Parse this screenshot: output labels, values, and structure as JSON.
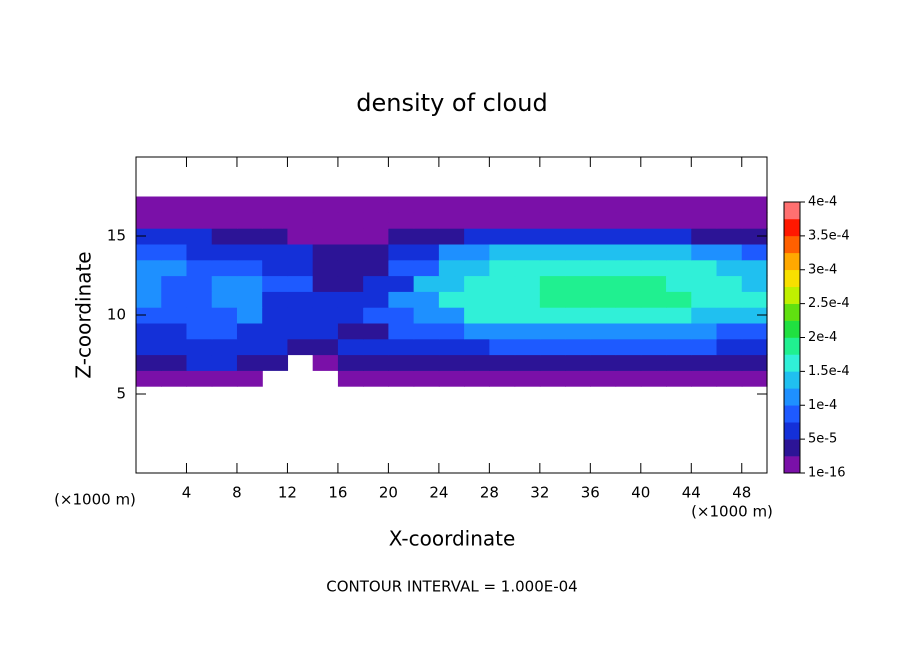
{
  "chart_data": {
    "type": "contour",
    "title": "density of cloud",
    "xlabel": "X-coordinate",
    "ylabel": "Z-coordinate",
    "x_units": "(×1000 m)",
    "y_units": "(×1000 m)",
    "annotation": "CONTOUR INTERVAL = 1.000E-04",
    "xlim": [
      0,
      50
    ],
    "ylim": [
      0,
      20
    ],
    "xticks": [
      4,
      8,
      12,
      16,
      20,
      24,
      28,
      32,
      36,
      40,
      44,
      48
    ],
    "yticks": [
      5,
      10,
      15
    ],
    "x": [
      1,
      3,
      5,
      7,
      9,
      11,
      13,
      15,
      17,
      19,
      21,
      23,
      25,
      27,
      29,
      31,
      33,
      35,
      37,
      39,
      41,
      43,
      45,
      47,
      49
    ],
    "y": [
      6,
      7,
      8,
      9,
      10,
      11,
      12,
      13,
      14,
      15,
      16,
      17
    ],
    "z": [
      [
        1e-05,
        1e-05,
        1e-05,
        1e-05,
        1e-05,
        null,
        null,
        null,
        1e-05,
        1e-05,
        1e-05,
        1e-05,
        1e-05,
        1e-05,
        1e-05,
        1e-05,
        1e-05,
        1e-05,
        1e-05,
        1e-05,
        1e-05,
        1e-05,
        1e-05,
        1e-05,
        1e-05
      ],
      [
        4e-05,
        4e-05,
        5e-05,
        5e-05,
        3e-05,
        3e-05,
        null,
        2e-05,
        3e-05,
        3e-05,
        4e-05,
        4e-05,
        4e-05,
        4e-05,
        4e-05,
        4e-05,
        4e-05,
        4e-05,
        4e-05,
        4e-05,
        4e-05,
        4e-05,
        4e-05,
        3e-05,
        3e-05
      ],
      [
        6e-05,
        6e-05,
        7e-05,
        7e-05,
        5e-05,
        5e-05,
        3e-05,
        3e-05,
        5e-05,
        5e-05,
        6e-05,
        6e-05,
        6e-05,
        6e-05,
        8e-05,
        8e-05,
        8e-05,
        8e-05,
        8e-05,
        8e-05,
        8e-05,
        8e-05,
        8e-05,
        6e-05,
        6e-05
      ],
      [
        6e-05,
        6e-05,
        8e-05,
        8e-05,
        6e-05,
        6e-05,
        5e-05,
        5e-05,
        4e-05,
        4e-05,
        8e-05,
        8e-05,
        8e-05,
        0.00012,
        0.00012,
        0.00012,
        0.00012,
        0.00012,
        0.00012,
        0.00012,
        0.00012,
        0.00012,
        0.00012,
        9e-05,
        9e-05
      ],
      [
        8e-05,
        8e-05,
        9e-05,
        9e-05,
        0.00011,
        6e-05,
        6e-05,
        5e-05,
        5e-05,
        8e-05,
        8e-05,
        0.00012,
        0.00012,
        0.00016,
        0.00016,
        0.00016,
        0.00016,
        0.00016,
        0.00016,
        0.00016,
        0.00016,
        0.00016,
        0.00013,
        0.00013,
        0.00013
      ],
      [
        0.0001,
        8e-05,
        8e-05,
        0.00012,
        0.00012,
        7e-05,
        7e-05,
        5e-05,
        5e-05,
        6e-05,
        0.00012,
        0.00012,
        0.00016,
        0.00016,
        0.00016,
        0.00016,
        0.00018,
        0.00018,
        0.00018,
        0.00018,
        0.00018,
        0.00018,
        0.00015,
        0.00015,
        0.00015
      ],
      [
        0.00011,
        9e-05,
        9e-05,
        0.00012,
        0.00012,
        8e-05,
        8e-05,
        4e-05,
        4e-05,
        6e-05,
        6e-05,
        0.00013,
        0.00013,
        0.00016,
        0.00016,
        0.00016,
        0.00018,
        0.00018,
        0.00018,
        0.00018,
        0.00018,
        0.00017,
        0.00017,
        0.00017,
        0.00013
      ],
      [
        0.0001,
        0.0001,
        9e-05,
        9e-05,
        9e-05,
        7e-05,
        7e-05,
        4e-05,
        4e-05,
        4e-05,
        9e-05,
        9e-05,
        0.00014,
        0.00014,
        0.00017,
        0.00017,
        0.00017,
        0.00017,
        0.00017,
        0.00017,
        0.00017,
        0.00017,
        0.00017,
        0.00013,
        0.00013
      ],
      [
        8e-05,
        8e-05,
        7e-05,
        7e-05,
        7e-05,
        5e-05,
        5e-05,
        3e-05,
        3e-05,
        3e-05,
        6e-05,
        6e-05,
        0.0001,
        0.0001,
        0.00014,
        0.00014,
        0.00014,
        0.00014,
        0.00014,
        0.00014,
        0.00014,
        0.00014,
        0.00011,
        0.00011,
        8e-05
      ],
      [
        5e-05,
        5e-05,
        5e-05,
        3e-05,
        3e-05,
        3e-05,
        2e-05,
        2e-05,
        2e-05,
        2e-05,
        4e-05,
        4e-05,
        4e-05,
        6e-05,
        6e-05,
        6e-05,
        6e-05,
        6e-05,
        6e-05,
        6e-05,
        6e-05,
        6e-05,
        4e-05,
        4e-05,
        4e-05
      ],
      [
        2e-05,
        2e-05,
        2e-05,
        2e-05,
        2e-05,
        1e-05,
        1e-05,
        1e-05,
        1e-05,
        1e-05,
        1e-05,
        2e-05,
        2e-05,
        2e-05,
        2e-05,
        2e-05,
        2e-05,
        2e-05,
        2e-05,
        2e-05,
        2e-05,
        2e-05,
        2e-05,
        2e-05,
        2e-05
      ],
      [
        1e-05,
        1e-05,
        1e-05,
        1e-05,
        1e-05,
        1e-05,
        1e-05,
        1e-05,
        1e-05,
        1e-05,
        1e-05,
        1e-05,
        1e-05,
        1e-05,
        1e-05,
        1e-05,
        1e-05,
        1e-05,
        1e-05,
        1e-05,
        1e-05,
        1e-05,
        1e-05,
        1e-05,
        1e-05
      ]
    ],
    "levels": [
      1e-16,
      2.5e-05,
      5e-05,
      7.5e-05,
      0.0001,
      0.000125,
      0.00015,
      0.000175,
      0.0002,
      0.000225,
      0.00025,
      0.000275,
      0.0003,
      0.000325,
      0.00035,
      0.000375,
      0.0004
    ],
    "colors": [
      "#7a10a8",
      "#2c1496",
      "#1430d8",
      "#1e5aff",
      "#1e90ff",
      "#20c0f0",
      "#30f0d8",
      "#20f090",
      "#20e040",
      "#60e010",
      "#c0f000",
      "#f8e000",
      "#ffa800",
      "#ff6000",
      "#ff1800",
      "#ff7070"
    ],
    "colorbar_ticks": [
      {
        "value": 1e-16,
        "label": "1e-16"
      },
      {
        "value": 5e-05,
        "label": "5e-5"
      },
      {
        "value": 0.0001,
        "label": "1e-4"
      },
      {
        "value": 0.00015,
        "label": "1.5e-4"
      },
      {
        "value": 0.0002,
        "label": "2e-4"
      },
      {
        "value": 0.00025,
        "label": "2.5e-4"
      },
      {
        "value": 0.0003,
        "label": "3e-4"
      },
      {
        "value": 0.00035,
        "label": "3.5e-4"
      },
      {
        "value": 0.0004,
        "label": "4e-4"
      }
    ]
  }
}
